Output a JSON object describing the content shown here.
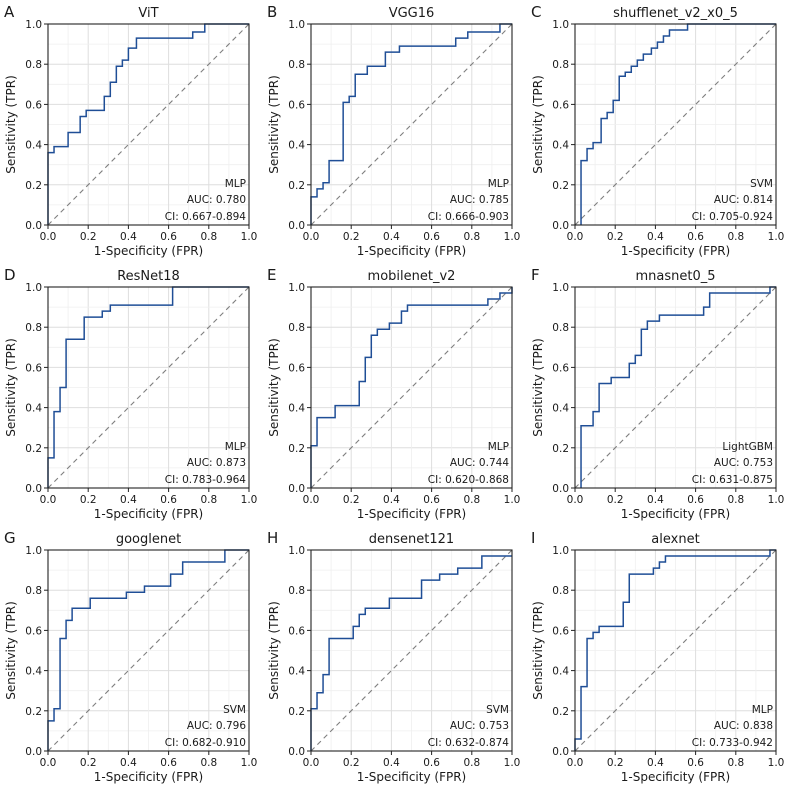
{
  "colors": {
    "curve": "#1f4e96",
    "diagonal": "#7f7f7f",
    "grid": "#dedede"
  },
  "chart_data": [
    {
      "type": "line",
      "letter": "A",
      "title": "ViT",
      "xlabel": "1-Specificity (FPR)",
      "ylabel": "Sensitivity (TPR)",
      "xlim": [
        0,
        1
      ],
      "ylim": [
        0,
        1
      ],
      "grid": true,
      "ticks": [
        "0.0",
        "0.2",
        "0.4",
        "0.6",
        "0.8",
        "1.0"
      ],
      "model": "MLP",
      "auc": "AUC: 0.780",
      "ci": "CI: 0.667-0.894",
      "fpr": [
        0,
        0,
        0.03,
        0.03,
        0.1,
        0.1,
        0.16,
        0.16,
        0.19,
        0.19,
        0.22,
        0.22,
        0.28,
        0.28,
        0.31,
        0.31,
        0.34,
        0.34,
        0.37,
        0.37,
        0.4,
        0.4,
        0.44,
        0.44,
        0.72,
        0.72,
        0.78,
        0.78,
        1.0
      ],
      "tpr": [
        0,
        0.36,
        0.36,
        0.39,
        0.39,
        0.46,
        0.46,
        0.54,
        0.54,
        0.57,
        0.57,
        0.57,
        0.57,
        0.64,
        0.64,
        0.71,
        0.71,
        0.79,
        0.79,
        0.82,
        0.82,
        0.88,
        0.88,
        0.93,
        0.93,
        0.96,
        0.96,
        1.0,
        1.0
      ]
    },
    {
      "type": "line",
      "letter": "B",
      "title": "VGG16",
      "xlabel": "1-Specificity (FPR)",
      "ylabel": "Sensitivity (TPR)",
      "xlim": [
        0,
        1
      ],
      "ylim": [
        0,
        1
      ],
      "grid": true,
      "ticks": [
        "0.0",
        "0.2",
        "0.4",
        "0.6",
        "0.8",
        "1.0"
      ],
      "model": "MLP",
      "auc": "AUC: 0.785",
      "ci": "CI: 0.666-0.903",
      "fpr": [
        0,
        0,
        0.03,
        0.03,
        0.06,
        0.06,
        0.09,
        0.09,
        0.16,
        0.16,
        0.19,
        0.19,
        0.22,
        0.22,
        0.28,
        0.28,
        0.37,
        0.37,
        0.44,
        0.44,
        0.72,
        0.72,
        0.78,
        0.78,
        0.94,
        0.94,
        1.0
      ],
      "tpr": [
        0,
        0.14,
        0.14,
        0.18,
        0.18,
        0.21,
        0.21,
        0.32,
        0.32,
        0.61,
        0.61,
        0.64,
        0.64,
        0.75,
        0.75,
        0.79,
        0.79,
        0.86,
        0.86,
        0.89,
        0.89,
        0.93,
        0.93,
        0.96,
        0.96,
        1.0,
        1.0
      ]
    },
    {
      "type": "line",
      "letter": "C",
      "title": "shufflenet_v2_x0_5",
      "xlabel": "1-Specificity (FPR)",
      "ylabel": "Sensitivity (TPR)",
      "xlim": [
        0,
        1
      ],
      "ylim": [
        0,
        1
      ],
      "grid": true,
      "ticks": [
        "0.0",
        "0.2",
        "0.4",
        "0.6",
        "0.8",
        "1.0"
      ],
      "model": "SVM",
      "auc": "AUC: 0.814",
      "ci": "CI: 0.705-0.924",
      "fpr": [
        0.03,
        0.03,
        0.06,
        0.06,
        0.09,
        0.09,
        0.13,
        0.13,
        0.16,
        0.16,
        0.19,
        0.19,
        0.22,
        0.22,
        0.25,
        0.25,
        0.28,
        0.28,
        0.31,
        0.31,
        0.34,
        0.34,
        0.38,
        0.38,
        0.41,
        0.41,
        0.44,
        0.44,
        0.47,
        0.47,
        0.53,
        0.53,
        0.56,
        0.56,
        1.0
      ],
      "tpr": [
        0,
        0.32,
        0.32,
        0.38,
        0.38,
        0.41,
        0.41,
        0.53,
        0.53,
        0.56,
        0.56,
        0.62,
        0.62,
        0.74,
        0.74,
        0.76,
        0.76,
        0.79,
        0.79,
        0.82,
        0.82,
        0.85,
        0.85,
        0.88,
        0.88,
        0.91,
        0.91,
        0.94,
        0.94,
        0.97,
        0.97,
        0.97,
        0.97,
        1.0,
        1.0
      ]
    },
    {
      "type": "line",
      "letter": "D",
      "title": "ResNet18",
      "xlabel": "1-Specificity (FPR)",
      "ylabel": "Sensitivity (TPR)",
      "xlim": [
        0,
        1
      ],
      "ylim": [
        0,
        1
      ],
      "grid": true,
      "ticks": [
        "0.0",
        "0.2",
        "0.4",
        "0.6",
        "0.8",
        "1.0"
      ],
      "model": "MLP",
      "auc": "AUC: 0.873",
      "ci": "CI: 0.783-0.964",
      "fpr": [
        0,
        0,
        0.03,
        0.03,
        0.06,
        0.06,
        0.09,
        0.09,
        0.12,
        0.12,
        0.18,
        0.18,
        0.27,
        0.27,
        0.31,
        0.31,
        0.62,
        0.62,
        1.0
      ],
      "tpr": [
        0,
        0.15,
        0.15,
        0.38,
        0.38,
        0.5,
        0.5,
        0.74,
        0.74,
        0.74,
        0.74,
        0.85,
        0.85,
        0.88,
        0.88,
        0.91,
        0.91,
        1.0,
        1.0
      ]
    },
    {
      "type": "line",
      "letter": "E",
      "title": "mobilenet_v2",
      "xlabel": "1-Specificity (FPR)",
      "ylabel": "Sensitivity (TPR)",
      "xlim": [
        0,
        1
      ],
      "ylim": [
        0,
        1
      ],
      "grid": true,
      "ticks": [
        "0.0",
        "0.2",
        "0.4",
        "0.6",
        "0.8",
        "1.0"
      ],
      "model": "MLP",
      "auc": "AUC: 0.744",
      "ci": "CI: 0.620-0.868",
      "fpr": [
        0,
        0,
        0.03,
        0.03,
        0.12,
        0.12,
        0.24,
        0.24,
        0.27,
        0.27,
        0.3,
        0.3,
        0.33,
        0.33,
        0.36,
        0.36,
        0.39,
        0.39,
        0.45,
        0.45,
        0.48,
        0.48,
        0.88,
        0.88,
        0.94,
        0.94,
        1.0,
        1.0
      ],
      "tpr": [
        0,
        0.21,
        0.21,
        0.35,
        0.35,
        0.41,
        0.41,
        0.53,
        0.53,
        0.65,
        0.65,
        0.76,
        0.76,
        0.79,
        0.79,
        0.79,
        0.79,
        0.82,
        0.82,
        0.88,
        0.88,
        0.91,
        0.91,
        0.94,
        0.94,
        0.97,
        0.97,
        1.0
      ]
    },
    {
      "type": "line",
      "letter": "F",
      "title": "mnasnet0_5",
      "xlabel": "1-Specificity (FPR)",
      "ylabel": "Sensitivity (TPR)",
      "xlim": [
        0,
        1
      ],
      "ylim": [
        0,
        1
      ],
      "grid": true,
      "ticks": [
        "0.0",
        "0.2",
        "0.4",
        "0.6",
        "0.8",
        "1.0"
      ],
      "model": "LightGBM",
      "auc": "AUC: 0.753",
      "ci": "CI: 0.631-0.875",
      "fpr": [
        0.03,
        0.03,
        0.09,
        0.09,
        0.12,
        0.12,
        0.18,
        0.18,
        0.27,
        0.27,
        0.3,
        0.3,
        0.33,
        0.33,
        0.36,
        0.36,
        0.42,
        0.42,
        0.64,
        0.64,
        0.67,
        0.67,
        0.97,
        0.97,
        1.0
      ],
      "tpr": [
        0,
        0.31,
        0.31,
        0.38,
        0.38,
        0.52,
        0.52,
        0.55,
        0.55,
        0.62,
        0.62,
        0.66,
        0.66,
        0.79,
        0.79,
        0.83,
        0.83,
        0.86,
        0.86,
        0.9,
        0.9,
        0.97,
        0.97,
        1.0,
        1.0
      ]
    },
    {
      "type": "line",
      "letter": "G",
      "title": "googlenet",
      "xlabel": "1-Specificity (FPR)",
      "ylabel": "Sensitivity (TPR)",
      "xlim": [
        0,
        1
      ],
      "ylim": [
        0,
        1
      ],
      "grid": true,
      "ticks": [
        "0.0",
        "0.2",
        "0.4",
        "0.6",
        "0.8",
        "1.0"
      ],
      "model": "SVM",
      "auc": "AUC: 0.796",
      "ci": "CI: 0.682-0.910",
      "fpr": [
        0,
        0,
        0.03,
        0.03,
        0.06,
        0.06,
        0.09,
        0.09,
        0.12,
        0.12,
        0.15,
        0.15,
        0.21,
        0.21,
        0.39,
        0.39,
        0.48,
        0.48,
        0.61,
        0.61,
        0.67,
        0.67,
        0.88,
        0.88,
        1.0
      ],
      "tpr": [
        0,
        0.15,
        0.15,
        0.21,
        0.21,
        0.56,
        0.56,
        0.65,
        0.65,
        0.71,
        0.71,
        0.71,
        0.71,
        0.76,
        0.76,
        0.79,
        0.79,
        0.82,
        0.82,
        0.88,
        0.88,
        0.94,
        0.94,
        1.0,
        1.0
      ]
    },
    {
      "type": "line",
      "letter": "H",
      "title": "densenet121",
      "xlabel": "1-Specificity (FPR)",
      "ylabel": "Sensitivity (TPR)",
      "xlim": [
        0,
        1
      ],
      "ylim": [
        0,
        1
      ],
      "grid": true,
      "ticks": [
        "0.0",
        "0.2",
        "0.4",
        "0.6",
        "0.8",
        "1.0"
      ],
      "model": "SVM",
      "auc": "AUC: 0.753",
      "ci": "CI: 0.632-0.874",
      "fpr": [
        0,
        0,
        0.03,
        0.03,
        0.06,
        0.06,
        0.09,
        0.09,
        0.12,
        0.12,
        0.21,
        0.21,
        0.24,
        0.24,
        0.27,
        0.27,
        0.3,
        0.3,
        0.39,
        0.39,
        0.55,
        0.55,
        0.64,
        0.64,
        0.73,
        0.73,
        0.85,
        0.85,
        1.0
      ],
      "tpr": [
        0,
        0.21,
        0.21,
        0.29,
        0.29,
        0.38,
        0.38,
        0.56,
        0.56,
        0.56,
        0.56,
        0.62,
        0.62,
        0.68,
        0.68,
        0.71,
        0.71,
        0.71,
        0.71,
        0.76,
        0.76,
        0.85,
        0.85,
        0.88,
        0.88,
        0.91,
        0.91,
        0.97,
        0.97
      ]
    },
    {
      "type": "line",
      "letter": "I",
      "title": "alexnet",
      "xlabel": "1-Specificity (FPR)",
      "ylabel": "Sensitivity (TPR)",
      "xlim": [
        0,
        1
      ],
      "ylim": [
        0,
        1
      ],
      "grid": true,
      "ticks": [
        "0.0",
        "0.2",
        "0.4",
        "0.6",
        "0.8",
        "1.0"
      ],
      "model": "MLP",
      "auc": "AUC: 0.838",
      "ci": "CI: 0.733-0.942",
      "fpr": [
        0,
        0,
        0.03,
        0.03,
        0.06,
        0.06,
        0.09,
        0.09,
        0.12,
        0.12,
        0.18,
        0.18,
        0.24,
        0.24,
        0.27,
        0.27,
        0.36,
        0.36,
        0.39,
        0.39,
        0.42,
        0.42,
        0.45,
        0.45,
        0.97,
        0.97,
        1.0
      ],
      "tpr": [
        0,
        0.06,
        0.06,
        0.32,
        0.32,
        0.56,
        0.56,
        0.59,
        0.59,
        0.62,
        0.62,
        0.62,
        0.62,
        0.74,
        0.74,
        0.88,
        0.88,
        0.88,
        0.88,
        0.91,
        0.91,
        0.94,
        0.94,
        0.97,
        0.97,
        1.0,
        1.0
      ]
    }
  ]
}
